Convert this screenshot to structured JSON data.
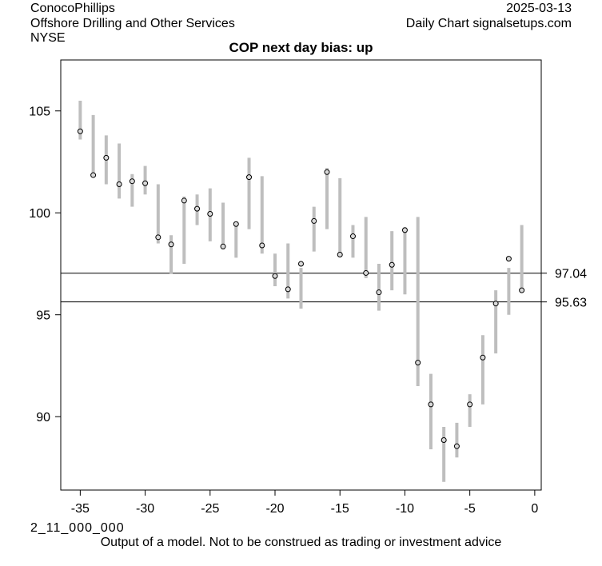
{
  "header": {
    "company": "ConocoPhillips",
    "industry": "Offshore Drilling and Other Services",
    "exchange": "NYSE",
    "date": "2025-03-13",
    "source": "Daily Chart signalsetups.com"
  },
  "footer": {
    "code": "2_11_000_000",
    "disclaimer": "Output of a model. Not to be construed as trading or investment advice"
  },
  "chart_data": {
    "type": "range",
    "title": "COP next day bias: up",
    "xlabel": "",
    "ylabel": "",
    "xlim": [
      -36.5,
      0.5
    ],
    "ylim": [
      86.4,
      107.5
    ],
    "x_ticks": [
      -35,
      -30,
      -25,
      -20,
      -15,
      -10,
      -5,
      0
    ],
    "y_ticks": [
      90,
      95,
      100,
      105
    ],
    "grid": false,
    "colors": {
      "range": "#bebebe",
      "point_fill": "#d9d9d9",
      "point_stroke": "#000000",
      "lines": "#000000"
    },
    "reference_lines": [
      {
        "value": 97.04,
        "label": "97.04"
      },
      {
        "value": 95.63,
        "label": "95.63"
      }
    ],
    "points": [
      {
        "x": -35,
        "low": 103.6,
        "high": 105.5,
        "close": 104.0
      },
      {
        "x": -34,
        "low": 101.8,
        "high": 104.8,
        "close": 101.85
      },
      {
        "x": -33,
        "low": 101.4,
        "high": 103.8,
        "close": 102.7
      },
      {
        "x": -32,
        "low": 100.7,
        "high": 103.4,
        "close": 101.4
      },
      {
        "x": -31,
        "low": 100.3,
        "high": 101.9,
        "close": 101.55
      },
      {
        "x": -30,
        "low": 100.9,
        "high": 102.3,
        "close": 101.45
      },
      {
        "x": -29,
        "low": 98.5,
        "high": 101.4,
        "close": 98.8
      },
      {
        "x": -28,
        "low": 97.0,
        "high": 98.9,
        "close": 98.45
      },
      {
        "x": -27,
        "low": 97.5,
        "high": 100.8,
        "close": 100.6
      },
      {
        "x": -26,
        "low": 99.4,
        "high": 100.9,
        "close": 100.2
      },
      {
        "x": -25,
        "low": 98.6,
        "high": 101.2,
        "close": 99.95
      },
      {
        "x": -24,
        "low": 98.2,
        "high": 100.5,
        "close": 98.35
      },
      {
        "x": -23,
        "low": 97.8,
        "high": 99.5,
        "close": 99.45
      },
      {
        "x": -22,
        "low": 99.2,
        "high": 102.7,
        "close": 101.75
      },
      {
        "x": -21,
        "low": 98.0,
        "high": 101.8,
        "close": 98.4
      },
      {
        "x": -20,
        "low": 96.4,
        "high": 98.0,
        "close": 96.9
      },
      {
        "x": -19,
        "low": 95.8,
        "high": 98.5,
        "close": 96.25
      },
      {
        "x": -18,
        "low": 95.3,
        "high": 97.3,
        "close": 97.5
      },
      {
        "x": -17,
        "low": 98.1,
        "high": 100.3,
        "close": 99.6
      },
      {
        "x": -16,
        "low": 99.2,
        "high": 102.2,
        "close": 102.0
      },
      {
        "x": -15,
        "low": 97.9,
        "high": 101.7,
        "close": 97.95
      },
      {
        "x": -14,
        "low": 97.8,
        "high": 99.4,
        "close": 98.85
      },
      {
        "x": -13,
        "low": 96.8,
        "high": 99.8,
        "close": 97.05
      },
      {
        "x": -12,
        "low": 95.2,
        "high": 97.5,
        "close": 96.1
      },
      {
        "x": -11,
        "low": 96.2,
        "high": 99.1,
        "close": 97.45
      },
      {
        "x": -10,
        "low": 96.0,
        "high": 99.3,
        "close": 99.15
      },
      {
        "x": -9,
        "low": 91.5,
        "high": 99.8,
        "close": 92.65
      },
      {
        "x": -8,
        "low": 88.4,
        "high": 92.1,
        "close": 90.6
      },
      {
        "x": -7,
        "low": 86.8,
        "high": 89.5,
        "close": 88.85
      },
      {
        "x": -6,
        "low": 88.0,
        "high": 89.7,
        "close": 88.55
      },
      {
        "x": -5,
        "low": 89.5,
        "high": 91.1,
        "close": 90.6
      },
      {
        "x": -4,
        "low": 90.6,
        "high": 94.0,
        "close": 92.9
      },
      {
        "x": -3,
        "low": 93.1,
        "high": 96.2,
        "close": 95.55
      },
      {
        "x": -2,
        "low": 95.0,
        "high": 97.3,
        "close": 97.75
      },
      {
        "x": -1,
        "low": 96.2,
        "high": 99.4,
        "close": 96.2
      }
    ]
  }
}
